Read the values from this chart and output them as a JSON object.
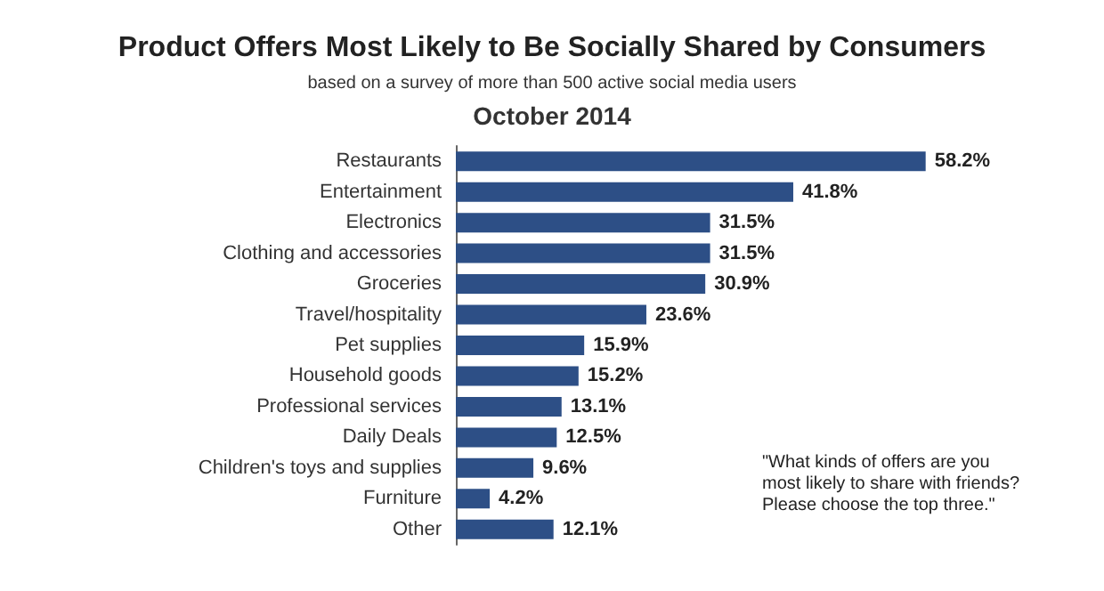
{
  "chart_data": {
    "type": "bar",
    "orientation": "horizontal",
    "title": "Product Offers Most Likely to Be Socially Shared by Consumers",
    "subtitle": "based on a survey of more than 500 active social media users\nOctober 2014",
    "categories": [
      "Restaurants",
      "Entertainment",
      "Electronics",
      "Clothing and accessories",
      "Groceries",
      "Travel/hospitality",
      "Pet supplies",
      "Household goods",
      "Professional services",
      "Daily Deals",
      "Children's toys and supplies",
      "Furniture",
      "Other"
    ],
    "values": [
      58.2,
      41.8,
      31.5,
      31.5,
      30.9,
      23.6,
      15.9,
      15.2,
      13.1,
      12.5,
      9.6,
      4.2,
      12.1
    ],
    "value_labels": [
      "58.2%",
      "41.8%",
      "31.5%",
      "31.5%",
      "30.9%",
      "23.6%",
      "15.9%",
      "15.2%",
      "13.1%",
      "12.5%",
      "9.6%",
      "4.2%",
      "12.1%"
    ],
    "color": "#2d4f86",
    "annotations": [
      "\"What kinds of offers are you\nmost likely to share with friends?\nPlease choose the top three.\""
    ]
  }
}
